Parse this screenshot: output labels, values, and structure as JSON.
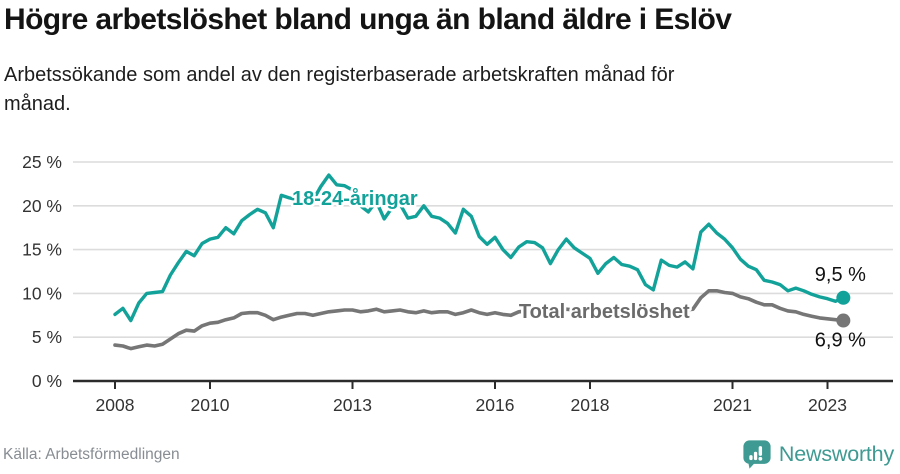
{
  "header": {
    "title": "Högre arbetslöshet bland unga än bland äldre i Eslöv",
    "subtitle_line1": "Arbetssökande som andel av den registerbaserade arbetskraften månad för",
    "subtitle_line2": "månad."
  },
  "footer": {
    "source": "Källa: Arbetsförmedlingen",
    "brand": "Newsworthy"
  },
  "colors": {
    "youth_line": "#12a29a",
    "total_line": "#767676",
    "total_label": "#6b6b6b",
    "axis": "#2b2b2b",
    "grid": "#dcdcdc",
    "tick_label": "#333333",
    "end_label": "#111111",
    "brand_teal": "#3e9a92"
  },
  "chart_data": {
    "type": "line",
    "title": "Högre arbetslöshet bland unga än bland äldre i Eslöv",
    "subtitle": "Arbetssökande som andel av den registerbaserade arbetskraften månad för månad.",
    "xlabel": "",
    "ylabel": "",
    "grid": "horizontal",
    "legend_position": "inline-labels",
    "x_start": 2008.0,
    "x_interval": 0.16667,
    "xlim": [
      2007.1,
      2024.4
    ],
    "ylim": [
      0,
      25
    ],
    "y_ticks": [
      0,
      5,
      10,
      15,
      20,
      25
    ],
    "y_tick_suffix": " %",
    "x_ticks": [
      2008,
      2010,
      2013,
      2016,
      2018,
      2021,
      2023
    ],
    "series": [
      {
        "name": "18-24-åringar",
        "color": "#12a29a",
        "label_color": "#12a29a",
        "label_at": {
          "x": 2013.05,
          "y": 20.9
        },
        "end_label": "9,5 %",
        "end_label_offset": [
          -3,
          -17
        ],
        "line_width": 3.4,
        "values": [
          7.6,
          8.3,
          6.9,
          8.9,
          10.0,
          10.1,
          10.2,
          12.1,
          13.5,
          14.8,
          14.3,
          15.7,
          16.2,
          16.4,
          17.5,
          16.8,
          18.3,
          19.0,
          19.6,
          19.2,
          17.5,
          21.2,
          20.9,
          20.7,
          20.8,
          20.6,
          22.2,
          23.5,
          22.4,
          22.3,
          21.8,
          20.0,
          19.3,
          20.5,
          18.5,
          19.8,
          20.2,
          18.6,
          18.8,
          20.0,
          18.8,
          18.6,
          18.0,
          16.9,
          19.6,
          18.8,
          16.5,
          15.6,
          16.4,
          15.0,
          14.1,
          15.3,
          15.9,
          15.8,
          15.2,
          13.4,
          15.0,
          16.2,
          15.2,
          14.6,
          14.0,
          12.3,
          13.4,
          14.1,
          13.3,
          13.1,
          12.7,
          11.0,
          10.4,
          13.8,
          13.2,
          13.0,
          13.6,
          12.8,
          17.0,
          17.9,
          16.9,
          16.2,
          15.2,
          13.9,
          13.1,
          12.7,
          11.5,
          11.3,
          11.0,
          10.3,
          10.6,
          10.3,
          9.9,
          9.6,
          9.4,
          9.1,
          9.5
        ]
      },
      {
        "name": "Total arbetslöshet",
        "color": "#767676",
        "label_color": "#6b6b6b",
        "label_at": {
          "x": 2018.3,
          "y": 8.0
        },
        "end_label": "6,9 %",
        "end_label_offset": [
          -3,
          26
        ],
        "line_width": 3.6,
        "values": [
          4.1,
          4.0,
          3.7,
          3.9,
          4.1,
          4.0,
          4.2,
          4.8,
          5.4,
          5.8,
          5.7,
          6.3,
          6.6,
          6.7,
          7.0,
          7.2,
          7.7,
          7.8,
          7.8,
          7.5,
          7.0,
          7.3,
          7.5,
          7.7,
          7.7,
          7.5,
          7.7,
          7.9,
          8.0,
          8.1,
          8.1,
          7.9,
          8.0,
          8.2,
          7.9,
          8.0,
          8.1,
          7.9,
          7.8,
          8.0,
          7.8,
          7.9,
          7.9,
          7.6,
          7.8,
          8.1,
          7.8,
          7.6,
          7.8,
          7.6,
          7.5,
          7.9,
          8.0,
          8.0,
          8.0,
          7.7,
          7.9,
          8.2,
          8.1,
          8.2,
          8.2,
          7.9,
          8.1,
          8.2,
          8.1,
          8.0,
          8.0,
          7.7,
          7.8,
          8.1,
          8.0,
          8.0,
          8.1,
          8.2,
          9.5,
          10.3,
          10.3,
          10.1,
          10.0,
          9.6,
          9.4,
          9.0,
          8.7,
          8.7,
          8.3,
          8.0,
          7.9,
          7.6,
          7.4,
          7.2,
          7.1,
          7.0,
          6.9
        ]
      }
    ]
  }
}
